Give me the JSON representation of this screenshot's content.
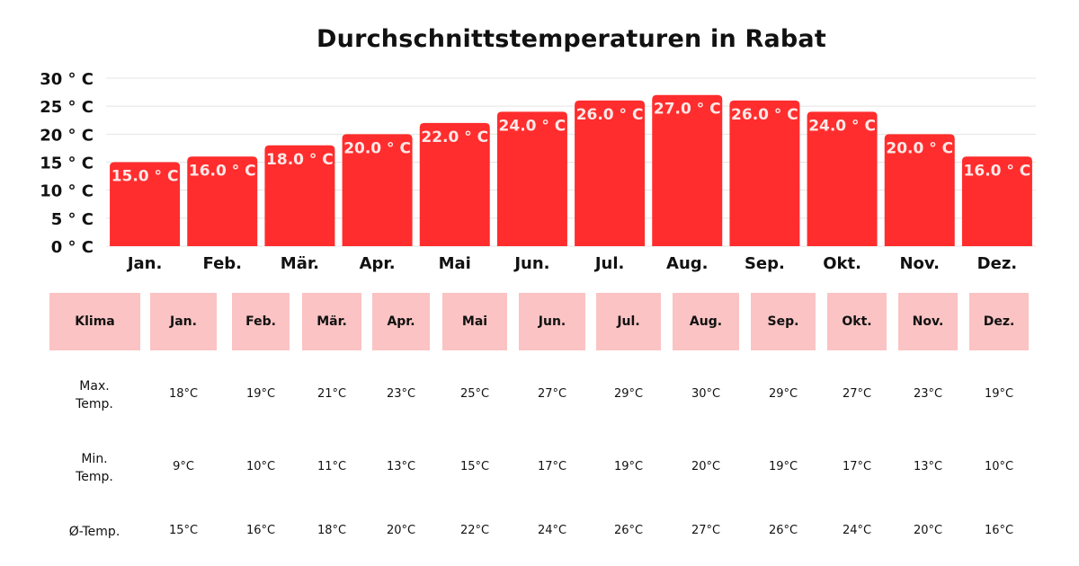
{
  "chart_data": {
    "type": "bar",
    "title": "Durchschnittstemperaturen in Rabat",
    "categories": [
      "Jan.",
      "Feb.",
      "Mär.",
      "Apr.",
      "Mai",
      "Jun.",
      "Jul.",
      "Aug.",
      "Sep.",
      "Okt.",
      "Nov.",
      "Dez."
    ],
    "values": [
      15.0,
      16.0,
      18.0,
      20.0,
      22.0,
      24.0,
      26.0,
      27.0,
      26.0,
      24.0,
      20.0,
      16.0
    ],
    "data_labels": [
      "15.0 ° C",
      "16.0 ° C",
      "18.0 ° C",
      "20.0 ° C",
      "22.0 ° C",
      "24.0 ° C",
      "26.0 ° C",
      "27.0 ° C",
      "26.0 ° C",
      "24.0 ° C",
      "20.0 ° C",
      "16.0 ° C"
    ],
    "yticks": [
      0,
      5,
      10,
      15,
      20,
      25,
      30
    ],
    "ytick_labels": [
      "0 ° C",
      "5 ° C",
      "10 ° C",
      "15 ° C",
      "20 ° C",
      "25 ° C",
      "30 ° C"
    ],
    "ylim": [
      0,
      30
    ],
    "grid": true,
    "xlabel": "",
    "ylabel": "",
    "bar_color": "#ff2d2d",
    "label_color": "#fde8e8"
  },
  "table": {
    "header_color": "#fbc3c3",
    "corner": "Klima",
    "months": [
      "Jan.",
      "Feb.",
      "Mär.",
      "Apr.",
      "Mai",
      "Jun.",
      "Jul.",
      "Aug.",
      "Sep.",
      "Okt.",
      "Nov.",
      "Dez."
    ],
    "rows": [
      {
        "label": "Max.\nTemp.",
        "values": [
          "18°C",
          "19°C",
          "21°C",
          "23°C",
          "25°C",
          "27°C",
          "29°C",
          "30°C",
          "29°C",
          "27°C",
          "23°C",
          "19°C"
        ]
      },
      {
        "label": "Min.\nTemp.",
        "values": [
          "9°C",
          "10°C",
          "11°C",
          "13°C",
          "15°C",
          "17°C",
          "19°C",
          "20°C",
          "19°C",
          "17°C",
          "13°C",
          "10°C"
        ]
      },
      {
        "label": "Ø-Temp.",
        "values": [
          "15°C",
          "16°C",
          "18°C",
          "20°C",
          "22°C",
          "24°C",
          "26°C",
          "27°C",
          "26°C",
          "24°C",
          "20°C",
          "16°C"
        ]
      }
    ]
  }
}
